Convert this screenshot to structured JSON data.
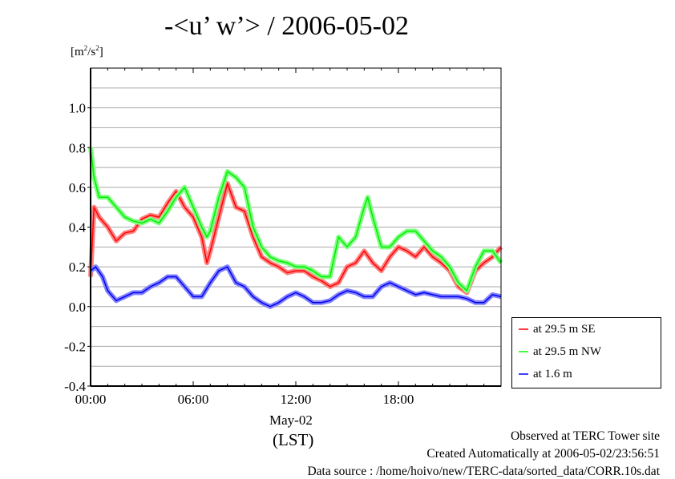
{
  "chart_data": {
    "type": "line",
    "title": "-<u’ w’> / 2006-05-02",
    "ylabel": "[m²/s²]",
    "xlabel": "(LST)",
    "xdate_label": "May-02",
    "xlim": [
      0,
      24
    ],
    "ylim": [
      -0.4,
      1.2
    ],
    "grid": true,
    "xticks": [
      {
        "v": 0,
        "label": "00:00"
      },
      {
        "v": 6,
        "label": "06:00"
      },
      {
        "v": 12,
        "label": "12:00"
      },
      {
        "v": 18,
        "label": "18:00"
      }
    ],
    "yticks": [
      {
        "v": -0.4,
        "label": "-0.4"
      },
      {
        "v": -0.2,
        "label": "-0.2"
      },
      {
        "v": 0.0,
        "label": "0.0"
      },
      {
        "v": 0.2,
        "label": "0.2"
      },
      {
        "v": 0.4,
        "label": "0.4"
      },
      {
        "v": 0.6,
        "label": "0.6"
      },
      {
        "v": 0.8,
        "label": "0.8"
      },
      {
        "v": 1.0,
        "label": "1.0"
      }
    ],
    "legend_position": "right",
    "series": [
      {
        "name": "at 29.5 m SE",
        "color": "#ff0000",
        "light": "#ff8080",
        "x": [
          0,
          0.2,
          0.5,
          1,
          1.5,
          2,
          2.5,
          3,
          3.5,
          4,
          4.5,
          5,
          5.5,
          6,
          6.5,
          6.8,
          7,
          7.5,
          8,
          8.5,
          9,
          9.5,
          10,
          10.5,
          11,
          11.5,
          12,
          12.5,
          13,
          13.5,
          14,
          14.5,
          15,
          15.5,
          16,
          16.5,
          17,
          17.5,
          18,
          18.5,
          19,
          19.5,
          20,
          20.5,
          21,
          21.5,
          22,
          22.5,
          23,
          23.5,
          24
        ],
        "y": [
          0.15,
          0.5,
          0.45,
          0.4,
          0.33,
          0.37,
          0.38,
          0.44,
          0.46,
          0.45,
          0.52,
          0.58,
          0.5,
          0.45,
          0.35,
          0.22,
          0.28,
          0.45,
          0.62,
          0.5,
          0.48,
          0.35,
          0.25,
          0.22,
          0.2,
          0.17,
          0.18,
          0.18,
          0.15,
          0.13,
          0.1,
          0.12,
          0.2,
          0.22,
          0.28,
          0.22,
          0.18,
          0.25,
          0.3,
          0.28,
          0.25,
          0.3,
          0.25,
          0.22,
          0.18,
          0.1,
          0.07,
          0.18,
          0.22,
          0.25,
          0.3
        ]
      },
      {
        "name": "at 29.5 m NW",
        "color": "#00ee00",
        "light": "#80ff80",
        "x": [
          0,
          0.2,
          0.5,
          1,
          1.5,
          2,
          2.5,
          3,
          3.5,
          4,
          4.5,
          5,
          5.5,
          6,
          6.5,
          6.8,
          7,
          7.5,
          8,
          8.5,
          9,
          9.5,
          10,
          10.5,
          11,
          11.5,
          12,
          12.5,
          13,
          13.5,
          14,
          14.5,
          15,
          15.5,
          16,
          16.2,
          16.5,
          17,
          17.5,
          18,
          18.5,
          19,
          19.5,
          20,
          20.5,
          21,
          21.5,
          22,
          22.5,
          23,
          23.5,
          24
        ],
        "y": [
          0.8,
          0.65,
          0.55,
          0.55,
          0.5,
          0.45,
          0.43,
          0.42,
          0.44,
          0.42,
          0.48,
          0.55,
          0.6,
          0.5,
          0.4,
          0.35,
          0.38,
          0.55,
          0.68,
          0.65,
          0.6,
          0.4,
          0.3,
          0.25,
          0.23,
          0.22,
          0.2,
          0.2,
          0.18,
          0.15,
          0.15,
          0.35,
          0.3,
          0.35,
          0.5,
          0.55,
          0.45,
          0.3,
          0.3,
          0.35,
          0.38,
          0.38,
          0.33,
          0.28,
          0.25,
          0.2,
          0.12,
          0.08,
          0.2,
          0.28,
          0.28,
          0.22
        ]
      },
      {
        "name": "at 1.6 m",
        "color": "#0000ee",
        "light": "#8080ff",
        "x": [
          0,
          0.3,
          0.7,
          1,
          1.5,
          2,
          2.5,
          3,
          3.5,
          4,
          4.5,
          5,
          5.5,
          6,
          6.5,
          7,
          7.5,
          8,
          8.5,
          9,
          9.5,
          10,
          10.5,
          11,
          11.5,
          12,
          12.5,
          13,
          13.5,
          14,
          14.5,
          15,
          15.5,
          16,
          16.5,
          17,
          17.5,
          18,
          18.5,
          19,
          19.5,
          20,
          20.5,
          21,
          21.5,
          22,
          22.5,
          23,
          23.5,
          24
        ],
        "y": [
          0.18,
          0.2,
          0.15,
          0.08,
          0.03,
          0.05,
          0.07,
          0.07,
          0.1,
          0.12,
          0.15,
          0.15,
          0.1,
          0.05,
          0.05,
          0.12,
          0.18,
          0.2,
          0.12,
          0.1,
          0.05,
          0.02,
          0.0,
          0.02,
          0.05,
          0.07,
          0.05,
          0.02,
          0.02,
          0.03,
          0.06,
          0.08,
          0.07,
          0.05,
          0.05,
          0.1,
          0.12,
          0.1,
          0.08,
          0.06,
          0.07,
          0.06,
          0.05,
          0.05,
          0.05,
          0.04,
          0.02,
          0.02,
          0.06,
          0.05
        ]
      }
    ]
  },
  "footer": {
    "line1": "Observed at TERC Tower site",
    "line2": "Created Automatically at 2006-05-02/23:56:51",
    "line3": "Data source : /home/hoivo/new/TERC-data/sorted_data/CORR.10s.dat"
  }
}
